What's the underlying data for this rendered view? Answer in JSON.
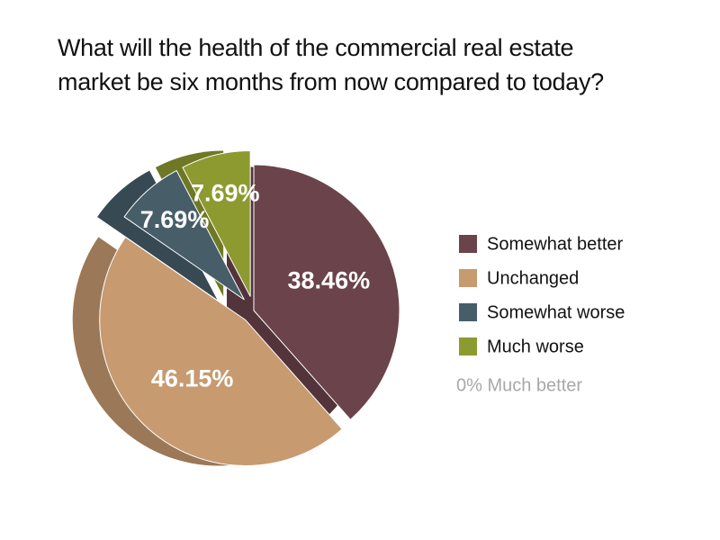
{
  "chart_data": {
    "type": "pie",
    "title": "What will the health of the commercial real estate\nmarket be six months from now compared to today?",
    "categories": [
      "Somewhat better",
      "Unchanged",
      "Somewhat worse",
      "Much worse"
    ],
    "values": [
      38.46,
      46.15,
      7.69,
      7.69
    ],
    "value_labels": [
      "38.46%",
      "46.15%",
      "7.69%",
      "7.69%"
    ],
    "colors": [
      "#6b434a",
      "#c79a70",
      "#475e69",
      "#8d9a30"
    ],
    "annotation": "0% Much better"
  }
}
